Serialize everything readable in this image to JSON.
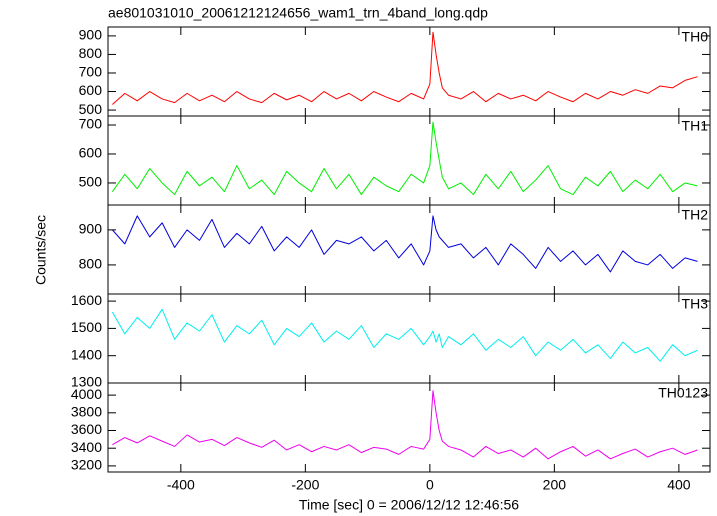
{
  "chart_data": {
    "type": "line",
    "title": "ae801031010_20061212124656_wam1_trn_4band_long.qdp",
    "xlabel": "Time [sec] 0 = 2006/12/12 12:46:56",
    "ylabel": "Counts/sec",
    "xlim": [
      -517,
      450
    ],
    "xticks": [
      -400,
      -200,
      0,
      200,
      400
    ],
    "x": [
      -510,
      -490,
      -470,
      -450,
      -430,
      -410,
      -390,
      -370,
      -350,
      -330,
      -310,
      -290,
      -270,
      -250,
      -230,
      -210,
      -190,
      -170,
      -150,
      -130,
      -110,
      -90,
      -70,
      -50,
      -30,
      -10,
      0,
      5,
      10,
      15,
      20,
      30,
      50,
      70,
      90,
      110,
      130,
      150,
      170,
      190,
      210,
      230,
      250,
      270,
      290,
      310,
      330,
      350,
      370,
      390,
      410,
      430
    ],
    "panels": [
      {
        "name": "TH0",
        "color": "#ff0000",
        "ylim": [
          468,
          948
        ],
        "yticks": [
          500,
          600,
          700,
          800,
          900
        ],
        "values": [
          530,
          590,
          550,
          600,
          560,
          540,
          590,
          550,
          580,
          545,
          600,
          560,
          540,
          590,
          555,
          580,
          545,
          600,
          560,
          590,
          550,
          600,
          570,
          545,
          590,
          560,
          640,
          920,
          800,
          700,
          620,
          580,
          560,
          600,
          545,
          590,
          560,
          580,
          550,
          600,
          570,
          545,
          590,
          560,
          600,
          580,
          610,
          590,
          630,
          620,
          660,
          680
        ]
      },
      {
        "name": "TH1",
        "color": "#00ee00",
        "ylim": [
          424,
          731
        ],
        "yticks": [
          500,
          600,
          700
        ],
        "values": [
          470,
          530,
          480,
          550,
          500,
          460,
          540,
          490,
          520,
          470,
          560,
          480,
          510,
          460,
          540,
          500,
          470,
          550,
          480,
          530,
          460,
          520,
          490,
          470,
          530,
          500,
          560,
          710,
          640,
          580,
          520,
          480,
          500,
          460,
          530,
          480,
          540,
          470,
          510,
          560,
          480,
          460,
          520,
          490,
          540,
          470,
          510,
          480,
          530,
          470,
          500,
          490
        ]
      },
      {
        "name": "TH2",
        "color": "#0000dd",
        "ylim": [
          717,
          971
        ],
        "yticks": [
          800,
          900
        ],
        "values": [
          900,
          860,
          940,
          880,
          920,
          850,
          900,
          870,
          930,
          850,
          890,
          860,
          910,
          840,
          880,
          850,
          900,
          830,
          870,
          860,
          880,
          840,
          870,
          820,
          860,
          800,
          840,
          940,
          900,
          880,
          870,
          850,
          860,
          820,
          850,
          800,
          860,
          830,
          790,
          850,
          810,
          840,
          800,
          830,
          780,
          840,
          810,
          800,
          830,
          790,
          820,
          810
        ]
      },
      {
        "name": "TH3",
        "color": "#00eeee",
        "ylim": [
          1300,
          1626
        ],
        "yticks": [
          1300,
          1400,
          1500,
          1600
        ],
        "values": [
          1560,
          1480,
          1540,
          1500,
          1570,
          1460,
          1520,
          1490,
          1550,
          1450,
          1510,
          1480,
          1530,
          1440,
          1500,
          1470,
          1520,
          1450,
          1490,
          1460,
          1510,
          1430,
          1480,
          1460,
          1500,
          1440,
          1470,
          1490,
          1450,
          1480,
          1430,
          1470,
          1440,
          1480,
          1420,
          1460,
          1430,
          1470,
          1400,
          1450,
          1420,
          1460,
          1410,
          1440,
          1390,
          1450,
          1410,
          1430,
          1380,
          1440,
          1400,
          1420
        ]
      },
      {
        "name": "TH0123",
        "color": "#ee00ee",
        "ylim": [
          3131,
          4137
        ],
        "yticks": [
          3200,
          3400,
          3600,
          3800,
          4000
        ],
        "values": [
          3440,
          3520,
          3460,
          3540,
          3480,
          3420,
          3550,
          3470,
          3500,
          3430,
          3520,
          3460,
          3410,
          3490,
          3380,
          3440,
          3360,
          3420,
          3380,
          3440,
          3350,
          3410,
          3390,
          3330,
          3420,
          3390,
          3500,
          4050,
          3800,
          3600,
          3480,
          3420,
          3380,
          3300,
          3420,
          3340,
          3380,
          3300,
          3400,
          3280,
          3360,
          3420,
          3310,
          3380,
          3280,
          3340,
          3390,
          3300,
          3360,
          3400,
          3330,
          3380
        ]
      }
    ]
  }
}
